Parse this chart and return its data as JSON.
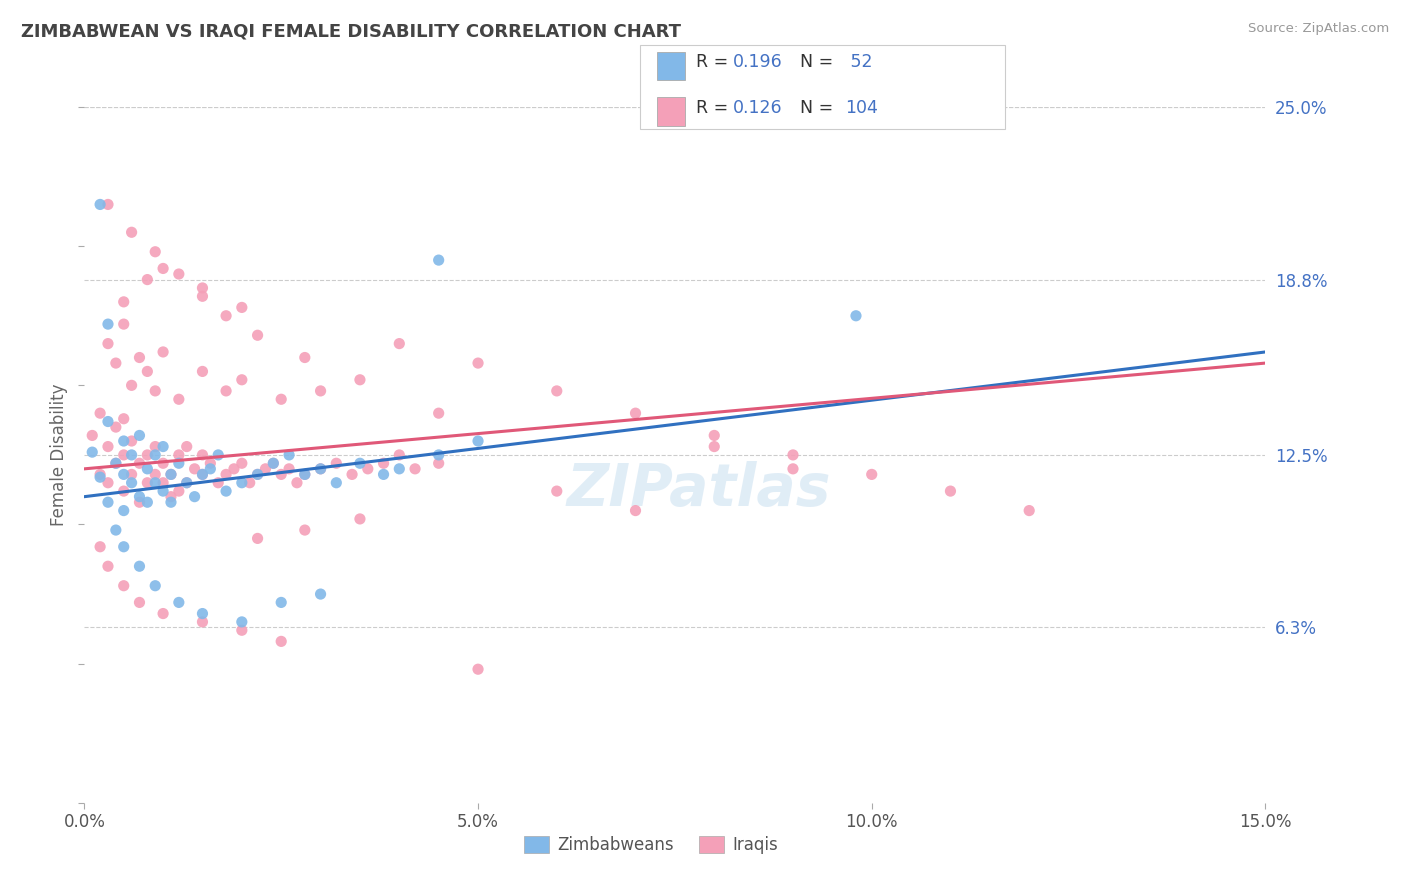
{
  "title": "ZIMBABWEAN VS IRAQI FEMALE DISABILITY CORRELATION CHART",
  "source_text": "Source: ZipAtlas.com",
  "ylabel": "Female Disability",
  "xlim": [
    0.0,
    0.15
  ],
  "ylim": [
    0.0,
    0.25
  ],
  "yticks_right": [
    0.063,
    0.125,
    0.188,
    0.25
  ],
  "ytick_labels_right": [
    "6.3%",
    "12.5%",
    "18.8%",
    "25.0%"
  ],
  "xticks": [
    0.0,
    0.05,
    0.1,
    0.15
  ],
  "xtick_labels": [
    "0.0%",
    "5.0%",
    "10.0%",
    "15.0%"
  ],
  "blue_color": "#82b8e8",
  "pink_color": "#f4a0b8",
  "blue_line_color": "#3070c0",
  "pink_line_color": "#e05878",
  "grid_color": "#cccccc",
  "legend_r_blue": "0.196",
  "legend_n_blue": "52",
  "legend_r_pink": "0.126",
  "legend_n_pink": "104",
  "blue_scatter_x": [
    0.001,
    0.002,
    0.003,
    0.003,
    0.004,
    0.004,
    0.005,
    0.005,
    0.005,
    0.006,
    0.006,
    0.007,
    0.007,
    0.008,
    0.008,
    0.009,
    0.009,
    0.01,
    0.01,
    0.011,
    0.011,
    0.012,
    0.013,
    0.014,
    0.015,
    0.016,
    0.017,
    0.018,
    0.02,
    0.022,
    0.024,
    0.026,
    0.028,
    0.03,
    0.032,
    0.035,
    0.038,
    0.04,
    0.045,
    0.05,
    0.002,
    0.003,
    0.005,
    0.007,
    0.009,
    0.012,
    0.015,
    0.02,
    0.025,
    0.03,
    0.098,
    0.045
  ],
  "blue_scatter_y": [
    0.126,
    0.117,
    0.137,
    0.108,
    0.122,
    0.098,
    0.118,
    0.13,
    0.105,
    0.115,
    0.125,
    0.11,
    0.132,
    0.108,
    0.12,
    0.115,
    0.125,
    0.112,
    0.128,
    0.118,
    0.108,
    0.122,
    0.115,
    0.11,
    0.118,
    0.12,
    0.125,
    0.112,
    0.115,
    0.118,
    0.122,
    0.125,
    0.118,
    0.12,
    0.115,
    0.122,
    0.118,
    0.12,
    0.125,
    0.13,
    0.215,
    0.172,
    0.092,
    0.085,
    0.078,
    0.072,
    0.068,
    0.065,
    0.072,
    0.075,
    0.175,
    0.195
  ],
  "pink_scatter_x": [
    0.001,
    0.002,
    0.002,
    0.003,
    0.003,
    0.004,
    0.004,
    0.005,
    0.005,
    0.005,
    0.006,
    0.006,
    0.007,
    0.007,
    0.008,
    0.008,
    0.009,
    0.009,
    0.01,
    0.01,
    0.011,
    0.011,
    0.012,
    0.012,
    0.013,
    0.013,
    0.014,
    0.015,
    0.015,
    0.016,
    0.017,
    0.018,
    0.019,
    0.02,
    0.021,
    0.022,
    0.023,
    0.024,
    0.025,
    0.026,
    0.027,
    0.028,
    0.03,
    0.032,
    0.034,
    0.036,
    0.038,
    0.04,
    0.042,
    0.045,
    0.003,
    0.004,
    0.005,
    0.006,
    0.007,
    0.008,
    0.009,
    0.01,
    0.012,
    0.015,
    0.018,
    0.02,
    0.025,
    0.03,
    0.002,
    0.003,
    0.005,
    0.007,
    0.01,
    0.015,
    0.02,
    0.025,
    0.005,
    0.008,
    0.01,
    0.015,
    0.02,
    0.04,
    0.05,
    0.06,
    0.07,
    0.08,
    0.09,
    0.1,
    0.11,
    0.12,
    0.003,
    0.006,
    0.009,
    0.012,
    0.015,
    0.018,
    0.022,
    0.028,
    0.035,
    0.045,
    0.035,
    0.028,
    0.022,
    0.08,
    0.09,
    0.06,
    0.07,
    0.05
  ],
  "pink_scatter_y": [
    0.132,
    0.14,
    0.118,
    0.128,
    0.115,
    0.135,
    0.122,
    0.125,
    0.138,
    0.112,
    0.118,
    0.13,
    0.122,
    0.108,
    0.125,
    0.115,
    0.118,
    0.128,
    0.115,
    0.122,
    0.11,
    0.118,
    0.125,
    0.112,
    0.128,
    0.115,
    0.12,
    0.118,
    0.125,
    0.122,
    0.115,
    0.118,
    0.12,
    0.122,
    0.115,
    0.118,
    0.12,
    0.122,
    0.118,
    0.12,
    0.115,
    0.118,
    0.12,
    0.122,
    0.118,
    0.12,
    0.122,
    0.125,
    0.12,
    0.122,
    0.165,
    0.158,
    0.172,
    0.15,
    0.16,
    0.155,
    0.148,
    0.162,
    0.145,
    0.155,
    0.148,
    0.152,
    0.145,
    0.148,
    0.092,
    0.085,
    0.078,
    0.072,
    0.068,
    0.065,
    0.062,
    0.058,
    0.18,
    0.188,
    0.192,
    0.185,
    0.178,
    0.165,
    0.158,
    0.148,
    0.14,
    0.132,
    0.125,
    0.118,
    0.112,
    0.105,
    0.215,
    0.205,
    0.198,
    0.19,
    0.182,
    0.175,
    0.168,
    0.16,
    0.152,
    0.14,
    0.102,
    0.098,
    0.095,
    0.128,
    0.12,
    0.112,
    0.105,
    0.048
  ]
}
